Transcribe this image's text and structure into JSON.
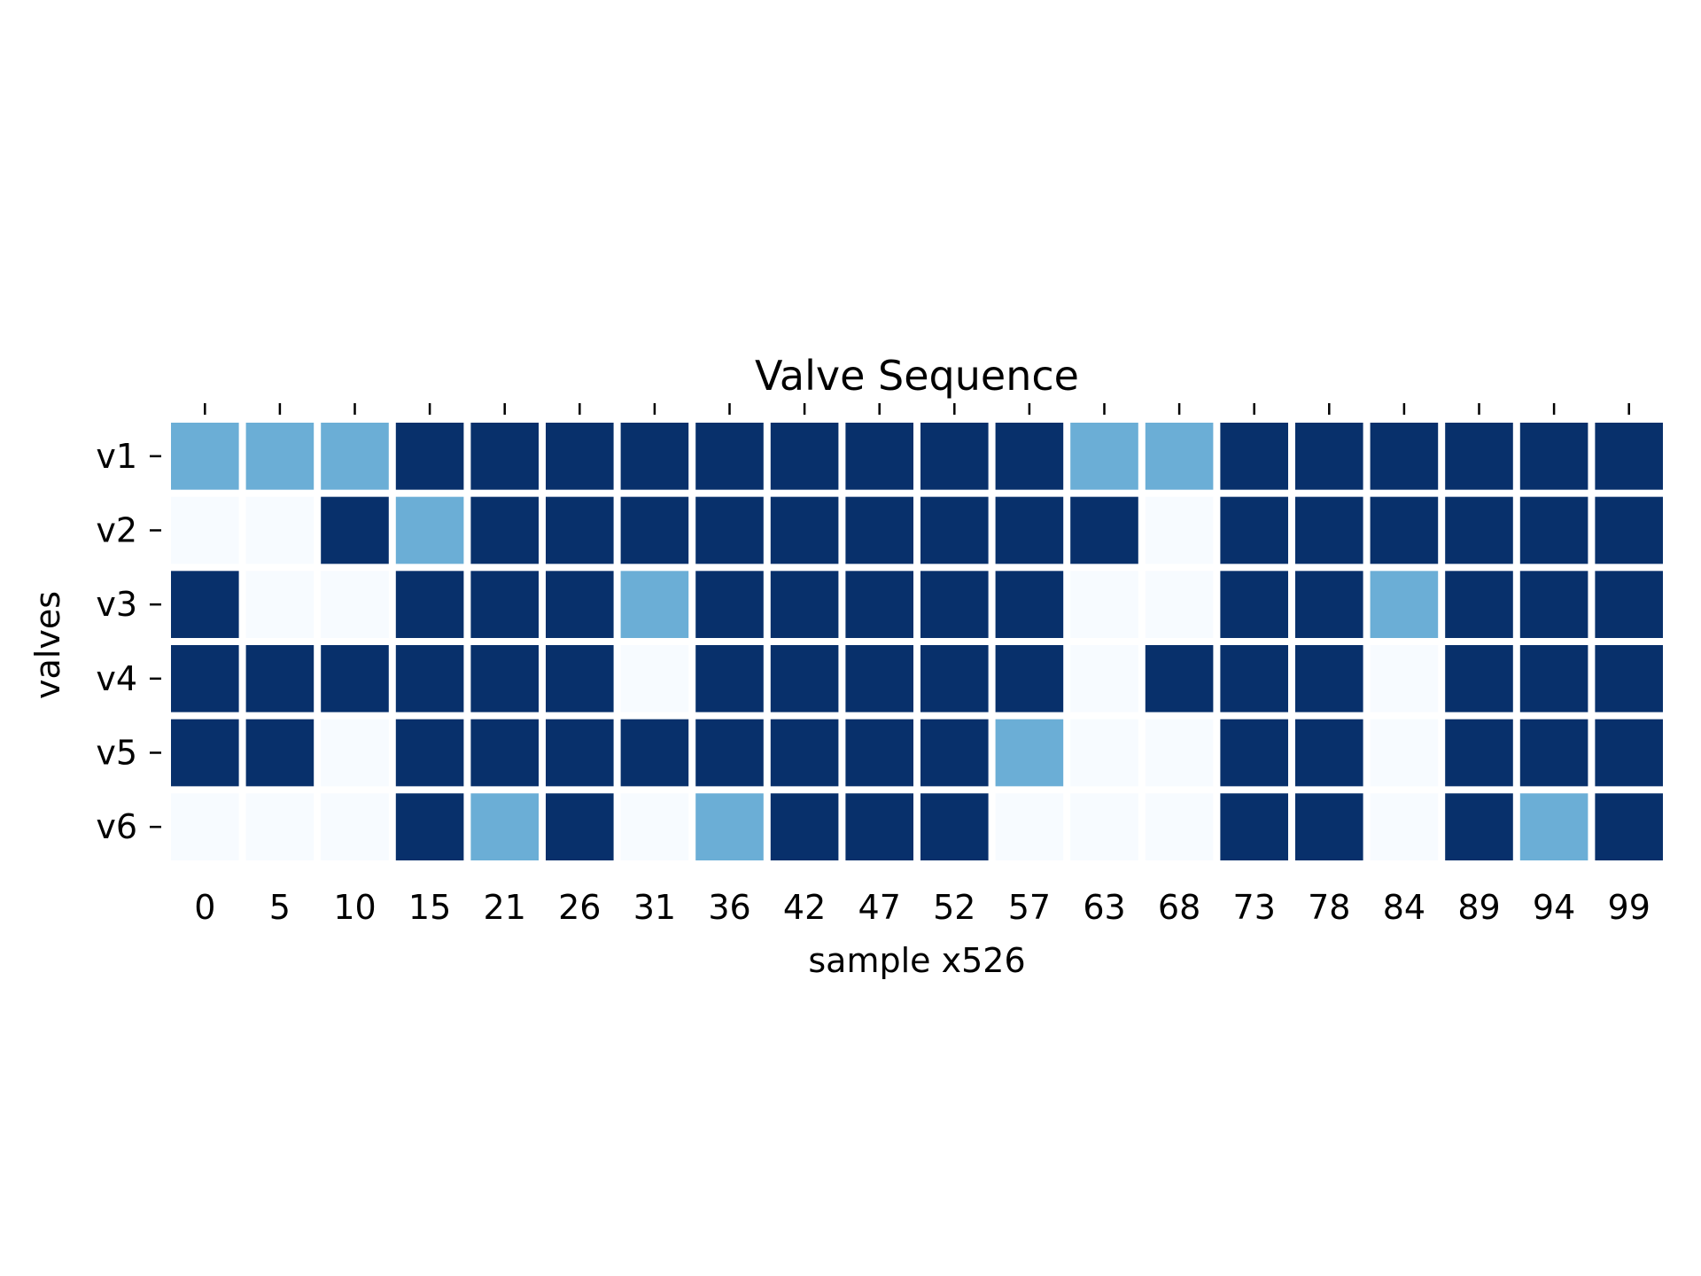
{
  "chart_data": {
    "type": "heatmap",
    "title": "Valve Sequence",
    "xlabel": "sample x526",
    "ylabel": "valves",
    "x": [
      "0",
      "5",
      "10",
      "15",
      "21",
      "26",
      "31",
      "36",
      "42",
      "47",
      "52",
      "57",
      "63",
      "68",
      "73",
      "78",
      "84",
      "89",
      "94",
      "99"
    ],
    "y": [
      "v1",
      "v2",
      "v3",
      "v4",
      "v5",
      "v6"
    ],
    "values": [
      [
        1,
        1,
        1,
        2,
        2,
        2,
        2,
        2,
        2,
        2,
        2,
        2,
        1,
        1,
        2,
        2,
        2,
        2,
        2,
        2
      ],
      [
        0,
        0,
        2,
        1,
        2,
        2,
        2,
        2,
        2,
        2,
        2,
        2,
        2,
        0,
        2,
        2,
        2,
        2,
        2,
        2
      ],
      [
        2,
        0,
        0,
        2,
        2,
        2,
        1,
        2,
        2,
        2,
        2,
        2,
        0,
        0,
        2,
        2,
        1,
        2,
        2,
        2
      ],
      [
        2,
        2,
        2,
        2,
        2,
        2,
        0,
        2,
        2,
        2,
        2,
        2,
        0,
        2,
        2,
        2,
        0,
        2,
        2,
        2
      ],
      [
        2,
        2,
        0,
        2,
        2,
        2,
        2,
        2,
        2,
        2,
        2,
        1,
        0,
        0,
        2,
        2,
        0,
        2,
        2,
        2
      ],
      [
        0,
        0,
        0,
        2,
        1,
        2,
        0,
        1,
        2,
        2,
        2,
        0,
        0,
        0,
        2,
        2,
        0,
        2,
        1,
        2
      ]
    ],
    "colors": {
      "0": "#f7fbff",
      "1": "#6baed6",
      "2": "#08306b"
    },
    "colorbar": false,
    "grid": false
  }
}
